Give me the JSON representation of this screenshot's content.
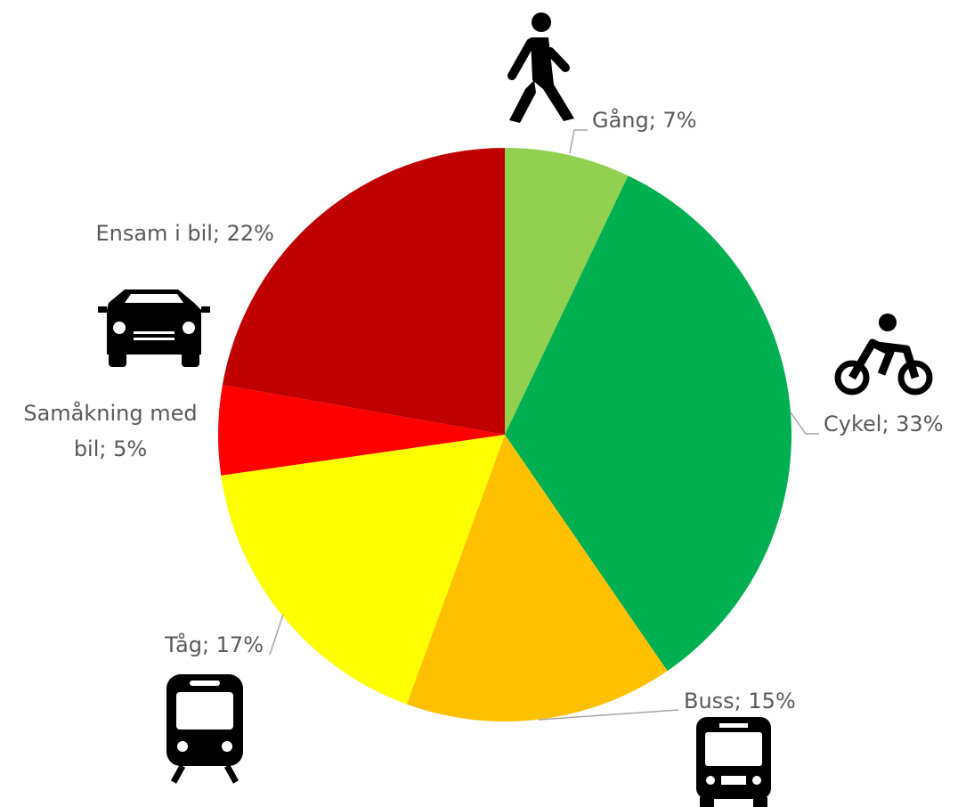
{
  "chart_data": {
    "type": "pie",
    "values": [
      7,
      33,
      15,
      17,
      5,
      22
    ],
    "value_labels": [
      "Gång; 7%",
      "Cykel; 33%",
      "Buss; 15%",
      "Tåg; 17%",
      "Samåkning med bil; 5%",
      "Ensam i bil; 22%"
    ],
    "colors": [
      "#92d050",
      "#00b050",
      "#ffc000",
      "#ffff00",
      "#ff0000",
      "#c00000"
    ]
  }
}
